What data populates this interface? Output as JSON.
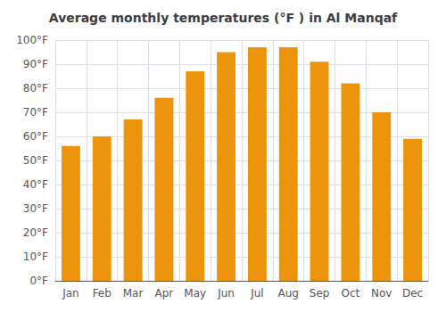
{
  "chart_data": {
    "type": "bar",
    "title": "Average monthly temperatures (°F ) in Al Manqaf",
    "categories": [
      "Jan",
      "Feb",
      "Mar",
      "Apr",
      "May",
      "Jun",
      "Jul",
      "Aug",
      "Sep",
      "Oct",
      "Nov",
      "Dec"
    ],
    "values": [
      56,
      60,
      67,
      76,
      87,
      95,
      97,
      97,
      91,
      82,
      70,
      59
    ],
    "color": "#ed940d",
    "ylim": [
      0,
      100
    ],
    "yticks": [
      {
        "value": 0,
        "label": "0°F"
      },
      {
        "value": 10,
        "label": "10°F"
      },
      {
        "value": 20,
        "label": "20°F"
      },
      {
        "value": 30,
        "label": "30°F"
      },
      {
        "value": 40,
        "label": "40°F"
      },
      {
        "value": 50,
        "label": "50°F"
      },
      {
        "value": 60,
        "label": "60°F"
      },
      {
        "value": 70,
        "label": "70°F"
      },
      {
        "value": 80,
        "label": "80°F"
      },
      {
        "value": 90,
        "label": "90°F"
      },
      {
        "value": 100,
        "label": "100°F"
      }
    ],
    "grid": true
  }
}
